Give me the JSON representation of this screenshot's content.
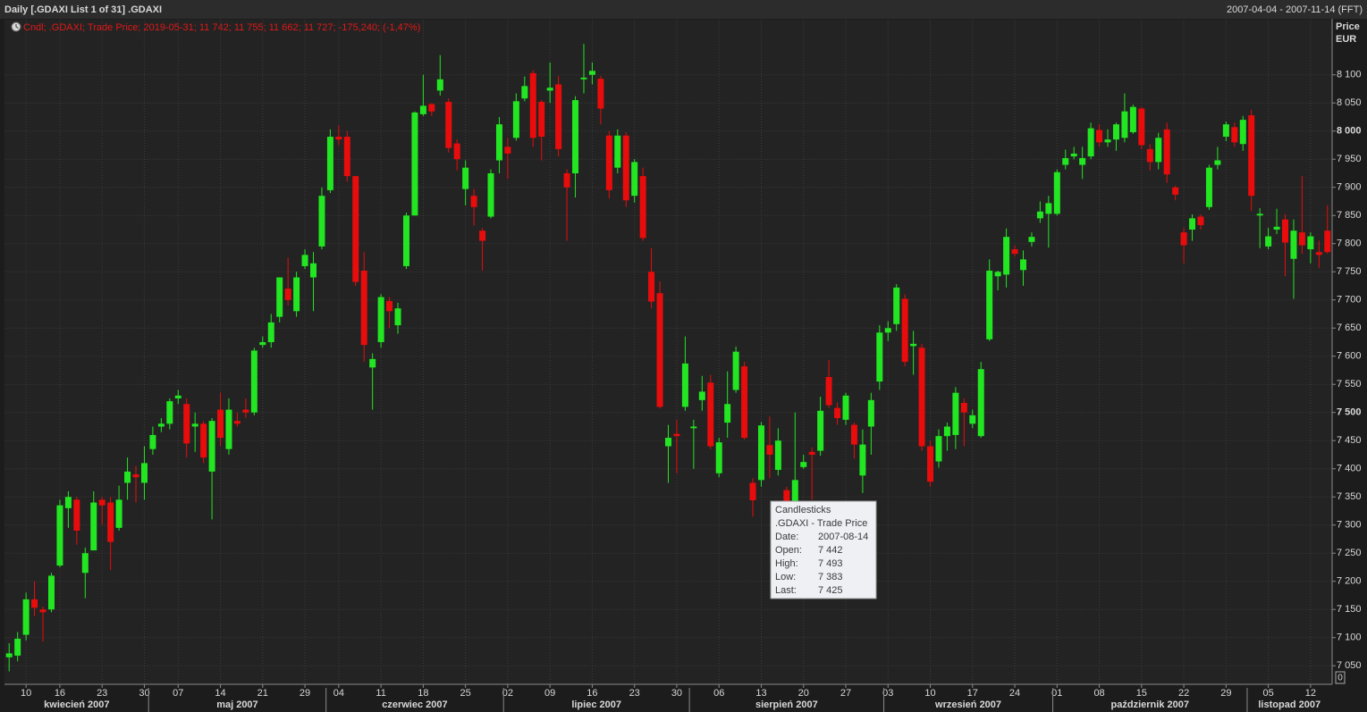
{
  "chart_data": {
    "type": "candlestick",
    "title": "Daily [.GDAXI List 1 of 31] .GDAXI",
    "subtitle": "2007-04-04 - 2007-11-14 (FFT)",
    "legend_text": "Cndl; .GDAXI; Trade Price; 2019-05-31; 11 742; 11 755; 11 662; 11 727; -175,240; (-1,47%)",
    "legend_color": "#e01818",
    "y_axis_label": [
      "Price",
      "EUR"
    ],
    "corner_label": "0",
    "up_color": "#22e622",
    "down_color": "#e80c0c",
    "grid": true,
    "categories": [
      "2007-04-04",
      "2007-04-05",
      "2007-04-10",
      "2007-04-11",
      "2007-04-12",
      "2007-04-13",
      "2007-04-16",
      "2007-04-17",
      "2007-04-18",
      "2007-04-19",
      "2007-04-20",
      "2007-04-23",
      "2007-04-24",
      "2007-04-25",
      "2007-04-26",
      "2007-04-27",
      "2007-04-30",
      "2007-05-02",
      "2007-05-03",
      "2007-05-04",
      "2007-05-07",
      "2007-05-08",
      "2007-05-09",
      "2007-05-10",
      "2007-05-11",
      "2007-05-14",
      "2007-05-15",
      "2007-05-16",
      "2007-05-17",
      "2007-05-18",
      "2007-05-21",
      "2007-05-22",
      "2007-05-23",
      "2007-05-24",
      "2007-05-25",
      "2007-05-29",
      "2007-05-30",
      "2007-05-31",
      "2007-06-01",
      "2007-06-04",
      "2007-06-05",
      "2007-06-06",
      "2007-06-07",
      "2007-06-08",
      "2007-06-11",
      "2007-06-12",
      "2007-06-13",
      "2007-06-14",
      "2007-06-15",
      "2007-06-18",
      "2007-06-19",
      "2007-06-20",
      "2007-06-21",
      "2007-06-22",
      "2007-06-25",
      "2007-06-26",
      "2007-06-27",
      "2007-06-28",
      "2007-06-29",
      "2007-07-02",
      "2007-07-03",
      "2007-07-04",
      "2007-07-05",
      "2007-07-06",
      "2007-07-09",
      "2007-07-10",
      "2007-07-11",
      "2007-07-12",
      "2007-07-13",
      "2007-07-16",
      "2007-07-17",
      "2007-07-18",
      "2007-07-19",
      "2007-07-20",
      "2007-07-23",
      "2007-07-24",
      "2007-07-25",
      "2007-07-26",
      "2007-07-27",
      "2007-07-30",
      "2007-07-31",
      "2007-08-01",
      "2007-08-02",
      "2007-08-03",
      "2007-08-06",
      "2007-08-07",
      "2007-08-08",
      "2007-08-09",
      "2007-08-10",
      "2007-08-13",
      "2007-08-14",
      "2007-08-15",
      "2007-08-16",
      "2007-08-17",
      "2007-08-20",
      "2007-08-21",
      "2007-08-22",
      "2007-08-23",
      "2007-08-24",
      "2007-08-27",
      "2007-08-28",
      "2007-08-29",
      "2007-08-30",
      "2007-08-31",
      "2007-09-03",
      "2007-09-04",
      "2007-09-05",
      "2007-09-06",
      "2007-09-07",
      "2007-09-10",
      "2007-09-11",
      "2007-09-12",
      "2007-09-13",
      "2007-09-14",
      "2007-09-17",
      "2007-09-18",
      "2007-09-19",
      "2007-09-20",
      "2007-09-21",
      "2007-09-24",
      "2007-09-25",
      "2007-09-26",
      "2007-09-27",
      "2007-09-28",
      "2007-10-01",
      "2007-10-02",
      "2007-10-03",
      "2007-10-04",
      "2007-10-05",
      "2007-10-08",
      "2007-10-09",
      "2007-10-10",
      "2007-10-11",
      "2007-10-12",
      "2007-10-15",
      "2007-10-16",
      "2007-10-17",
      "2007-10-18",
      "2007-10-19",
      "2007-10-22",
      "2007-10-23",
      "2007-10-24",
      "2007-10-25",
      "2007-10-26",
      "2007-10-29",
      "2007-10-30",
      "2007-10-31",
      "2007-11-01",
      "2007-11-02",
      "2007-11-05",
      "2007-11-06",
      "2007-11-07",
      "2007-11-08",
      "2007-11-09",
      "2007-11-12",
      "2007-11-13",
      "2007-11-14"
    ],
    "open": [
      7065,
      7068,
      7105,
      7168,
      7150,
      7150,
      7228,
      7330,
      7345,
      7215,
      7255,
      7345,
      7340,
      7295,
      7375,
      7390,
      7375,
      7435,
      7475,
      7480,
      7525,
      7515,
      7475,
      7480,
      7395,
      7505,
      7435,
      7485,
      7505,
      7500,
      7620,
      7625,
      7670,
      7720,
      7680,
      7760,
      7740,
      7795,
      7895,
      7990,
      7990,
      7920,
      7752,
      7580,
      7625,
      7698,
      7655,
      7760,
      7850,
      8030,
      8048,
      8072,
      8052,
      7978,
      7897,
      7885,
      7823,
      7848,
      7948,
      7972,
      7988,
      8058,
      8103,
      8052,
      8072,
      8083,
      7925,
      7925,
      8092,
      8100,
      8093,
      7992,
      7935,
      7992,
      7885,
      7920,
      7750,
      7712,
      7440,
      7462,
      7510,
      7472,
      7522,
      7553,
      7392,
      7482,
      7540,
      7582,
      7375,
      7380,
      7442,
      7398,
      7362,
      7343,
      7403,
      7430,
      7432,
      7563,
      7508,
      7487,
      7478,
      7388,
      7475,
      7555,
      7642,
      7657,
      7702,
      7618,
      7615,
      7440,
      7413,
      7458,
      7460,
      7517,
      7480,
      7458,
      7630,
      7742,
      7745,
      7790,
      7753,
      7803,
      7845,
      7853,
      7853,
      7940,
      7955,
      7940,
      7955,
      8002,
      7980,
      7985,
      7988,
      7998,
      8040,
      7968,
      7945,
      8003,
      7900,
      7820,
      7825,
      7848,
      7865,
      7940,
      7990,
      8007,
      7977,
      8028,
      7850,
      7795,
      7825,
      7843,
      7773,
      7820,
      7790,
      7785,
      7823
    ],
    "high": [
      7090,
      7110,
      7180,
      7200,
      7155,
      7215,
      7345,
      7360,
      7350,
      7260,
      7360,
      7350,
      7350,
      7370,
      7420,
      7405,
      7440,
      7475,
      7490,
      7525,
      7540,
      7525,
      7500,
      7485,
      7490,
      7535,
      7525,
      7500,
      7525,
      7615,
      7635,
      7675,
      7740,
      7775,
      7750,
      7790,
      7785,
      7900,
      8003,
      8010,
      8000,
      7920,
      7785,
      7605,
      7710,
      7705,
      7695,
      7855,
      8035,
      8100,
      8050,
      8135,
      8058,
      7985,
      7948,
      7897,
      7828,
      7932,
      8025,
      7988,
      8067,
      8097,
      8108,
      8055,
      8122,
      8098,
      7932,
      8062,
      8155,
      8122,
      8098,
      8000,
      8003,
      7998,
      7950,
      7935,
      7792,
      7733,
      7478,
      7487,
      7635,
      7487,
      7565,
      7567,
      7455,
      7573,
      7617,
      7590,
      7383,
      7483,
      7493,
      7472,
      7368,
      7500,
      7425,
      7438,
      7528,
      7593,
      7518,
      7535,
      7482,
      7470,
      7535,
      7655,
      7662,
      7728,
      7710,
      7645,
      7622,
      7450,
      7470,
      7482,
      7545,
      7525,
      7505,
      7590,
      7772,
      7752,
      7827,
      7797,
      7788,
      7820,
      7875,
      7885,
      7932,
      7967,
      7972,
      7972,
      8015,
      8012,
      8003,
      8015,
      8067,
      8047,
      8043,
      7977,
      7997,
      8015,
      7903,
      7828,
      7852,
      7852,
      7940,
      7972,
      8017,
      8015,
      8027,
      8038,
      7863,
      7828,
      7862,
      7852,
      7843,
      7920,
      7820,
      7805,
      7868
    ],
    "low": [
      7040,
      7058,
      7095,
      7138,
      7093,
      7145,
      7225,
      7295,
      7265,
      7170,
      7255,
      7300,
      7220,
      7290,
      7345,
      7340,
      7345,
      7425,
      7465,
      7470,
      7515,
      7420,
      7430,
      7410,
      7310,
      7440,
      7425,
      7475,
      7490,
      7495,
      7615,
      7615,
      7660,
      7690,
      7670,
      7755,
      7680,
      7790,
      7890,
      7975,
      7910,
      7725,
      7590,
      7505,
      7615,
      7650,
      7640,
      7755,
      7850,
      8027,
      8027,
      8063,
      7962,
      7930,
      7868,
      7832,
      7752,
      7845,
      7925,
      7915,
      7983,
      8053,
      7972,
      7948,
      8050,
      7955,
      7805,
      7882,
      8067,
      8083,
      8012,
      7880,
      7925,
      7865,
      7873,
      7805,
      7685,
      7507,
      7375,
      7392,
      7503,
      7400,
      7503,
      7435,
      7385,
      7455,
      7535,
      7452,
      7315,
      7368,
      7383,
      7388,
      7312,
      7340,
      7400,
      7345,
      7423,
      7508,
      7478,
      7478,
      7418,
      7357,
      7425,
      7540,
      7627,
      7645,
      7582,
      7567,
      7432,
      7368,
      7402,
      7432,
      7435,
      7440,
      7472,
      7455,
      7627,
      7717,
      7722,
      7777,
      7725,
      7795,
      7837,
      7793,
      7850,
      7932,
      7950,
      7915,
      7950,
      7972,
      7972,
      7965,
      7980,
      7995,
      7968,
      7930,
      7932,
      7908,
      7877,
      7765,
      7805,
      7825,
      7860,
      7932,
      7982,
      7972,
      7965,
      7858,
      7792,
      7790,
      7817,
      7742,
      7702,
      7782,
      7765,
      7757,
      7782
    ],
    "close": [
      7072,
      7098,
      7168,
      7153,
      7145,
      7210,
      7335,
      7350,
      7290,
      7250,
      7340,
      7335,
      7270,
      7345,
      7395,
      7385,
      7410,
      7460,
      7480,
      7520,
      7530,
      7445,
      7480,
      7420,
      7485,
      7455,
      7505,
      7480,
      7500,
      7610,
      7625,
      7660,
      7740,
      7700,
      7740,
      7780,
      7765,
      7885,
      7990,
      7985,
      7920,
      7732,
      7620,
      7595,
      7705,
      7680,
      7685,
      7850,
      8033,
      8045,
      8035,
      8092,
      7970,
      7950,
      7935,
      7865,
      7805,
      7925,
      8012,
      7960,
      8053,
      8080,
      7988,
      7990,
      8077,
      7968,
      7900,
      8055,
      8095,
      8107,
      8040,
      7895,
      7992,
      7877,
      7945,
      7810,
      7697,
      7510,
      7455,
      7458,
      7587,
      7475,
      7537,
      7440,
      7447,
      7515,
      7608,
      7455,
      7344,
      7477,
      7425,
      7450,
      7343,
      7380,
      7412,
      7425,
      7503,
      7513,
      7490,
      7530,
      7443,
      7443,
      7522,
      7642,
      7650,
      7722,
      7590,
      7622,
      7440,
      7377,
      7458,
      7475,
      7535,
      7500,
      7495,
      7577,
      7752,
      7750,
      7812,
      7782,
      7772,
      7812,
      7857,
      7872,
      7927,
      7952,
      7960,
      7952,
      8005,
      7980,
      7985,
      8012,
      8035,
      8043,
      7975,
      7945,
      7988,
      7923,
      7887,
      7797,
      7845,
      7833,
      7935,
      7948,
      8012,
      7980,
      8020,
      7885,
      7853,
      7813,
      7830,
      7802,
      7823,
      7797,
      7813,
      7780,
      7785
    ],
    "ylim": [
      7017,
      8198
    ],
    "yticks": [
      {
        "value": 7050,
        "label": "7 050"
      },
      {
        "value": 7100,
        "label": "7 100"
      },
      {
        "value": 7150,
        "label": "7 150"
      },
      {
        "value": 7200,
        "label": "7 200"
      },
      {
        "value": 7250,
        "label": "7 250"
      },
      {
        "value": 7300,
        "label": "7 300"
      },
      {
        "value": 7350,
        "label": "7 350"
      },
      {
        "value": 7400,
        "label": "7 400"
      },
      {
        "value": 7450,
        "label": "7 450"
      },
      {
        "value": 7500,
        "label": "7 500"
      },
      {
        "value": 7550,
        "label": "7 550"
      },
      {
        "value": 7600,
        "label": "7 600"
      },
      {
        "value": 7650,
        "label": "7 650"
      },
      {
        "value": 7700,
        "label": "7 700"
      },
      {
        "value": 7750,
        "label": "7 750"
      },
      {
        "value": 7800,
        "label": "7 800"
      },
      {
        "value": 7850,
        "label": "7 850"
      },
      {
        "value": 7900,
        "label": "7 900"
      },
      {
        "value": 7950,
        "label": "7 950"
      },
      {
        "value": 8000,
        "label": "8 000"
      },
      {
        "value": 8050,
        "label": "8 050"
      },
      {
        "value": 8100,
        "label": "8 100"
      }
    ],
    "xticks": [
      {
        "value": "2007-04-10",
        "label": "10"
      },
      {
        "value": "2007-04-16",
        "label": "16"
      },
      {
        "value": "2007-04-23",
        "label": "23"
      },
      {
        "value": "2007-04-30",
        "label": "30"
      },
      {
        "value": "2007-05-07",
        "label": "07"
      },
      {
        "value": "2007-05-14",
        "label": "14"
      },
      {
        "value": "2007-05-21",
        "label": "21"
      },
      {
        "value": "2007-05-29",
        "label": "29"
      },
      {
        "value": "2007-06-04",
        "label": "04"
      },
      {
        "value": "2007-06-11",
        "label": "11"
      },
      {
        "value": "2007-06-18",
        "label": "18"
      },
      {
        "value": "2007-06-25",
        "label": "25"
      },
      {
        "value": "2007-07-02",
        "label": "02"
      },
      {
        "value": "2007-07-09",
        "label": "09"
      },
      {
        "value": "2007-07-16",
        "label": "16"
      },
      {
        "value": "2007-07-23",
        "label": "23"
      },
      {
        "value": "2007-07-30",
        "label": "30"
      },
      {
        "value": "2007-08-06",
        "label": "06"
      },
      {
        "value": "2007-08-13",
        "label": "13"
      },
      {
        "value": "2007-08-20",
        "label": "20"
      },
      {
        "value": "2007-08-27",
        "label": "27"
      },
      {
        "value": "2007-09-03",
        "label": "03"
      },
      {
        "value": "2007-09-10",
        "label": "10"
      },
      {
        "value": "2007-09-17",
        "label": "17"
      },
      {
        "value": "2007-09-24",
        "label": "24"
      },
      {
        "value": "2007-10-01",
        "label": "01"
      },
      {
        "value": "2007-10-08",
        "label": "08"
      },
      {
        "value": "2007-10-15",
        "label": "15"
      },
      {
        "value": "2007-10-22",
        "label": "22"
      },
      {
        "value": "2007-10-29",
        "label": "29"
      },
      {
        "value": "2007-11-05",
        "label": "05"
      },
      {
        "value": "2007-11-12",
        "label": "12"
      }
    ],
    "month_labels": [
      {
        "value": "2007-04",
        "label": "kwiecień 2007"
      },
      {
        "value": "2007-05",
        "label": "maj 2007"
      },
      {
        "value": "2007-06",
        "label": "czerwiec 2007"
      },
      {
        "value": "2007-07",
        "label": "lipiec 2007"
      },
      {
        "value": "2007-08",
        "label": "sierpień 2007"
      },
      {
        "value": "2007-09",
        "label": "wrzesień 2007"
      },
      {
        "value": "2007-10",
        "label": "październik 2007"
      },
      {
        "value": "2007-11",
        "label": "listopad 2007"
      }
    ],
    "tooltip": {
      "title": "Candlesticks",
      "subtitle": ".GDAXI - Trade Price",
      "rows": [
        [
          "Date:",
          "2007-08-14"
        ],
        [
          "Open:",
          "7 442"
        ],
        [
          "High:",
          "7 493"
        ],
        [
          "Low:",
          "7 383"
        ],
        [
          "Last:",
          "7 425"
        ]
      ]
    }
  }
}
